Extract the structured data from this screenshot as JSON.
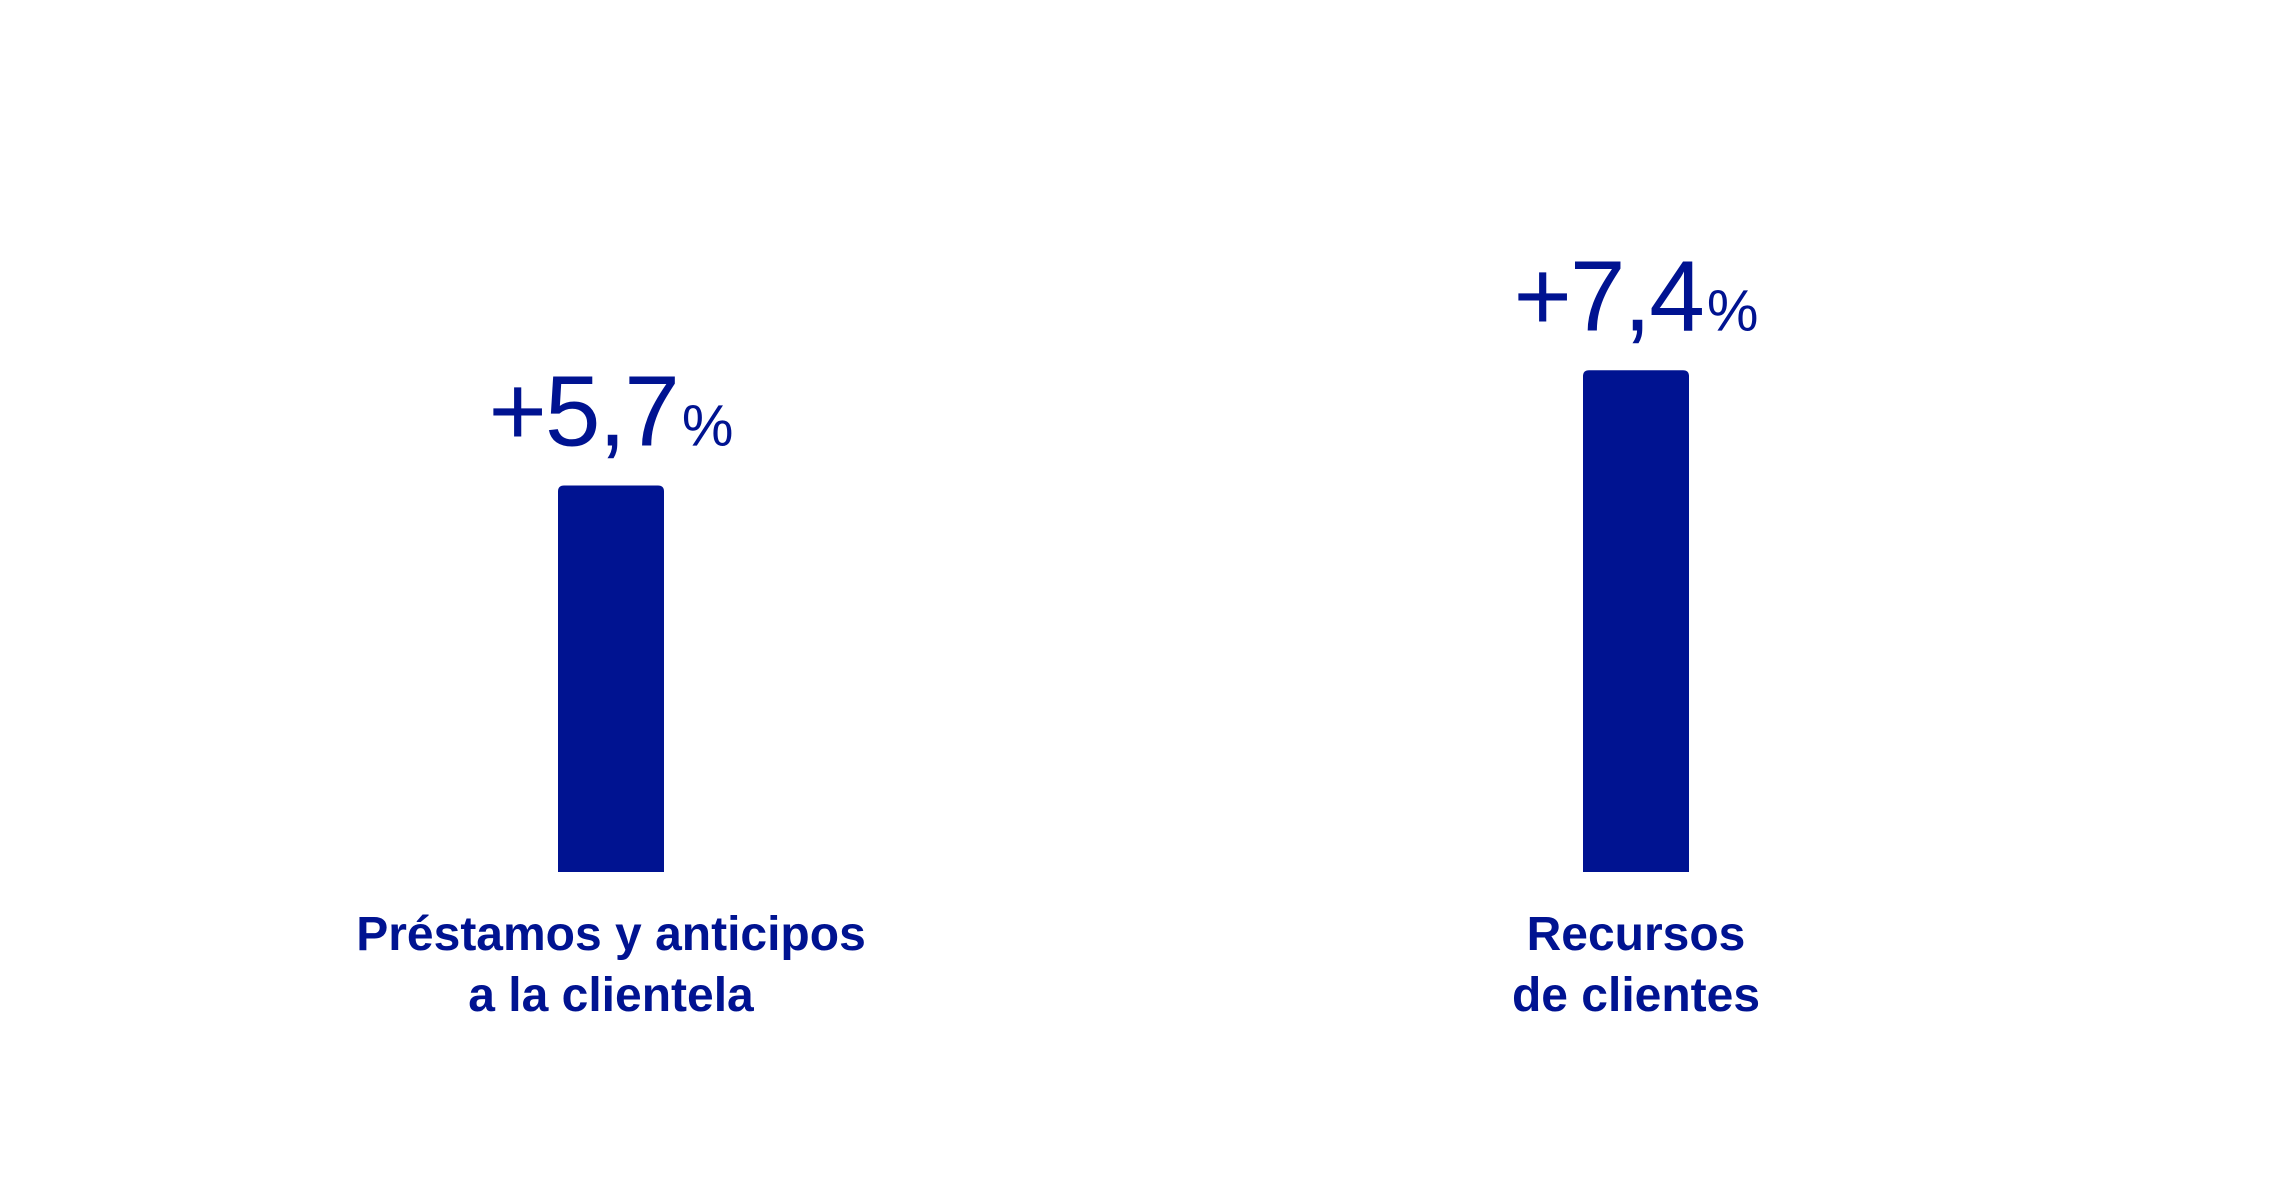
{
  "chart_data": {
    "type": "bar",
    "categories": [
      [
        "Préstamos y anticipos",
        "a la clientela"
      ],
      [
        "Recursos",
        "de clientes"
      ]
    ],
    "values": [
      5.7,
      7.4
    ],
    "value_labels": [
      {
        "number": "+5,7",
        "unit": "%"
      },
      {
        "number": "+7,4",
        "unit": "%"
      }
    ],
    "title": "",
    "xlabel": "",
    "ylabel": "",
    "grid": false,
    "legend": "none"
  },
  "colors": {
    "bar": "#001391",
    "text": "#001391",
    "background": "#ffffff"
  }
}
